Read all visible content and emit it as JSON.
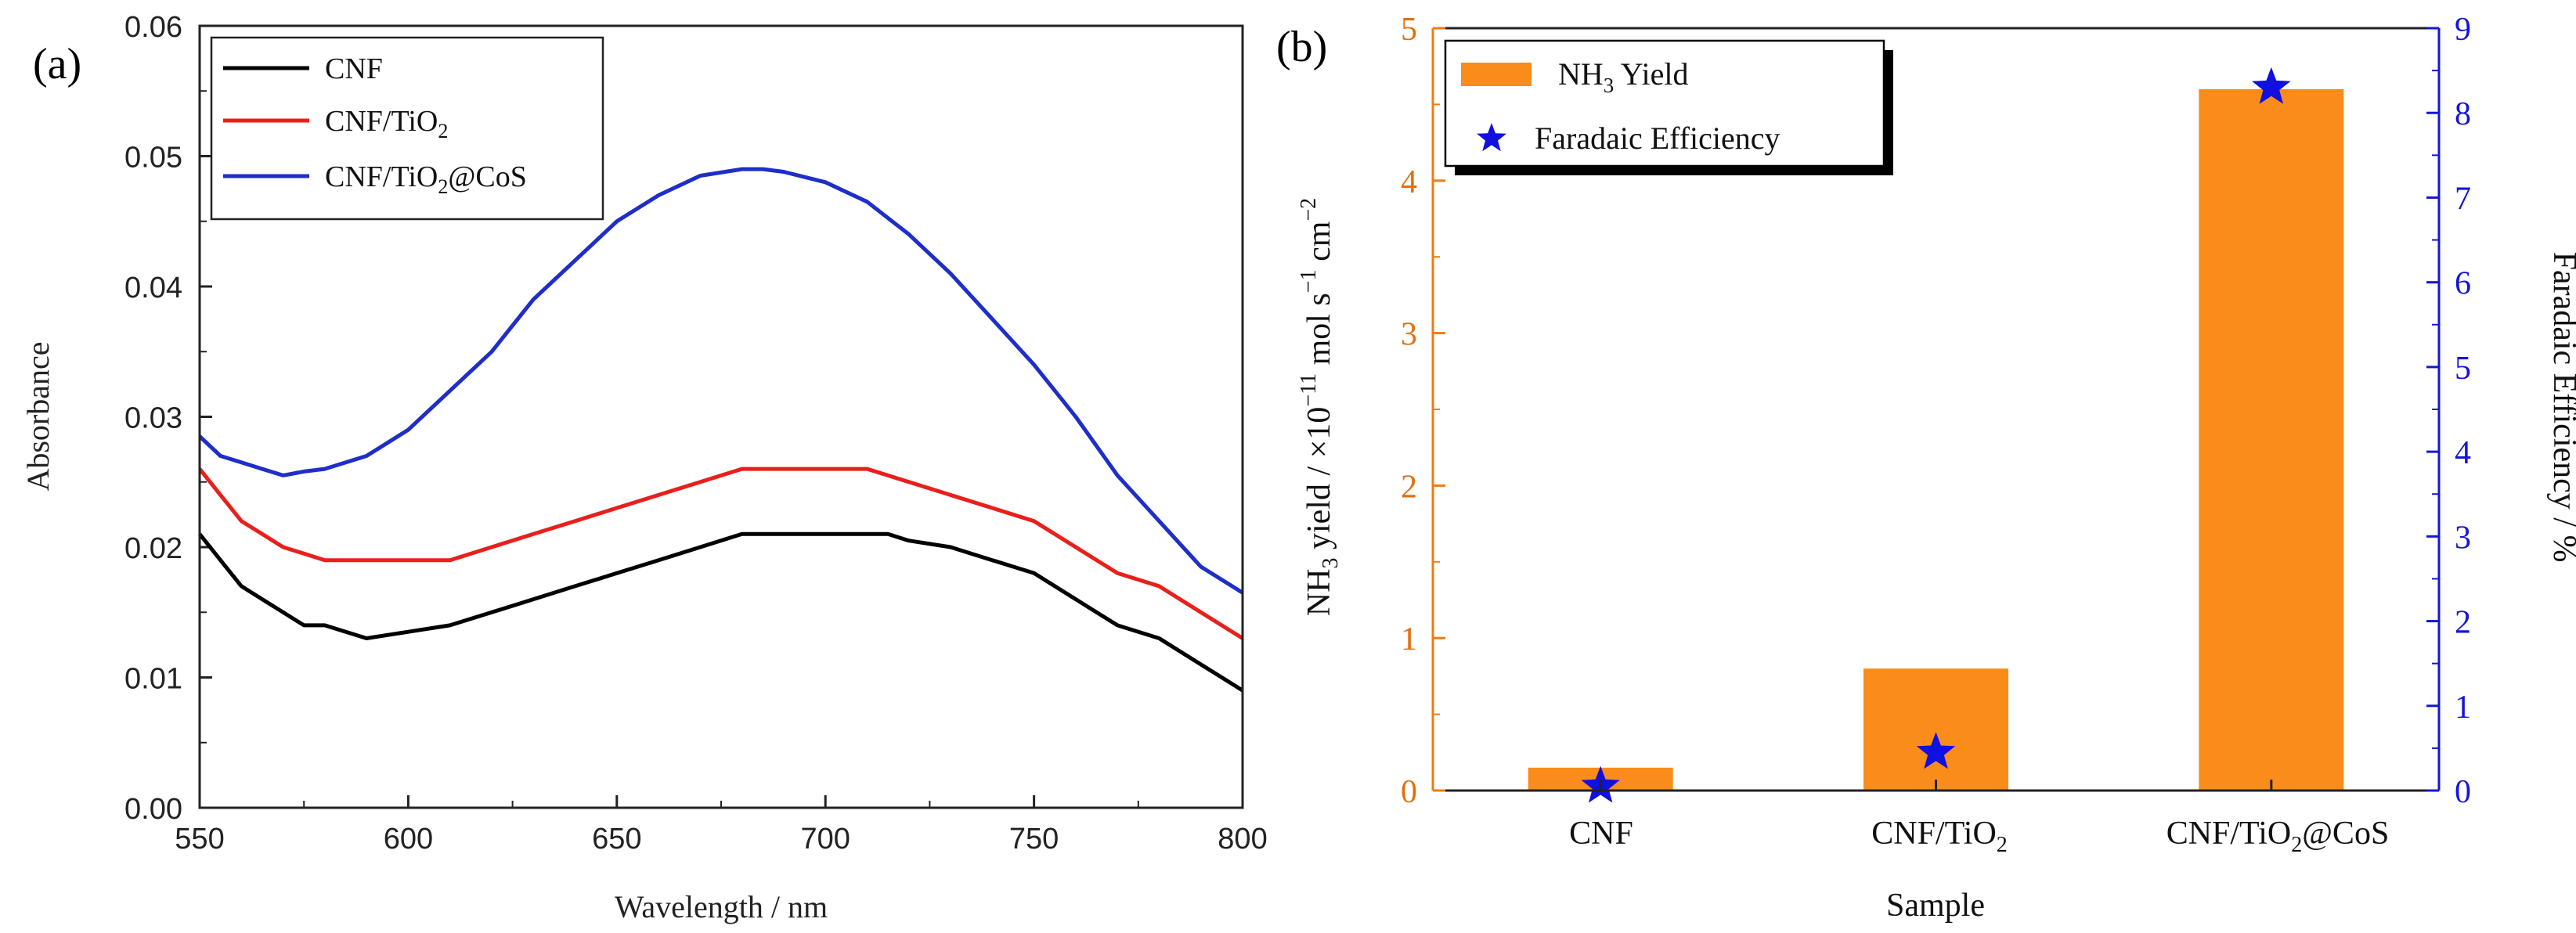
{
  "chart_data": [
    {
      "panel_label": "(a)",
      "type": "line",
      "xlabel": "Wavelength / nm",
      "ylabel": "Absorbance",
      "xlim": [
        550,
        800
      ],
      "ylim": [
        0,
        0.06
      ],
      "xticks": [
        "550",
        "600",
        "650",
        "700",
        "750",
        "800"
      ],
      "yticks": [
        "0.00",
        "0.01",
        "0.02",
        "0.03",
        "0.04",
        "0.05",
        "0.06"
      ],
      "legend_position": "top-left",
      "series": [
        {
          "name": "CNF",
          "color": "#000000",
          "x": [
            550,
            555,
            560,
            565,
            570,
            575,
            580,
            590,
            600,
            610,
            620,
            630,
            640,
            650,
            660,
            670,
            680,
            690,
            700,
            710,
            715,
            720,
            730,
            740,
            750,
            760,
            770,
            780,
            790,
            795,
            800
          ],
          "y": [
            0.021,
            0.019,
            0.017,
            0.016,
            0.015,
            0.014,
            0.014,
            0.013,
            0.0135,
            0.014,
            0.015,
            0.016,
            0.017,
            0.018,
            0.019,
            0.02,
            0.021,
            0.021,
            0.021,
            0.021,
            0.021,
            0.0205,
            0.02,
            0.019,
            0.018,
            0.016,
            0.014,
            0.013,
            0.011,
            0.01,
            0.009
          ]
        },
        {
          "name": "CNF/TiO2",
          "color": "#e8201c",
          "x": [
            550,
            555,
            560,
            565,
            570,
            575,
            580,
            590,
            600,
            610,
            620,
            630,
            640,
            650,
            660,
            670,
            680,
            690,
            700,
            710,
            715,
            720,
            730,
            740,
            750,
            760,
            770,
            780,
            790,
            800
          ],
          "y": [
            0.026,
            0.024,
            0.022,
            0.021,
            0.02,
            0.0195,
            0.019,
            0.019,
            0.019,
            0.019,
            0.02,
            0.021,
            0.022,
            0.023,
            0.024,
            0.025,
            0.026,
            0.026,
            0.026,
            0.026,
            0.0255,
            0.025,
            0.024,
            0.023,
            0.022,
            0.02,
            0.018,
            0.017,
            0.015,
            0.013
          ]
        },
        {
          "name": "CNF/TiO2@CoS",
          "color": "#1f2ec9",
          "x": [
            550,
            555,
            560,
            565,
            570,
            575,
            580,
            590,
            600,
            610,
            620,
            630,
            640,
            650,
            660,
            670,
            680,
            685,
            690,
            700,
            710,
            720,
            730,
            740,
            750,
            760,
            770,
            780,
            790,
            800
          ],
          "y": [
            0.0285,
            0.027,
            0.0265,
            0.026,
            0.0255,
            0.0258,
            0.026,
            0.027,
            0.029,
            0.032,
            0.035,
            0.039,
            0.042,
            0.045,
            0.047,
            0.0485,
            0.049,
            0.049,
            0.0488,
            0.048,
            0.0465,
            0.044,
            0.041,
            0.0375,
            0.034,
            0.03,
            0.0255,
            0.022,
            0.0185,
            0.0165
          ]
        }
      ]
    },
    {
      "panel_label": "(b)",
      "type": "bar",
      "xlabel": "Sample",
      "ylabel": "NH3 yield / ×10⁻¹¹ mol s⁻¹ cm⁻²",
      "y2label": "Faradaic Efficiency / %",
      "categories": [
        "CNF",
        "CNF/TiO2",
        "CNF/TiO2@CoS"
      ],
      "ylim": [
        0,
        5
      ],
      "y2lim": [
        0,
        9
      ],
      "yticks": [
        "0",
        "1",
        "2",
        "3",
        "4",
        "5"
      ],
      "y2ticks": [
        "0",
        "1",
        "2",
        "3",
        "4",
        "5",
        "6",
        "7",
        "8",
        "9"
      ],
      "legend_position": "top-left",
      "series": [
        {
          "name": "NH3 Yield",
          "axis": "left",
          "type": "bar",
          "color": "#f98c1a",
          "values": [
            0.15,
            0.8,
            4.6
          ]
        },
        {
          "name": "Faradaic Efficiency",
          "axis": "right",
          "type": "scatter",
          "marker": "star",
          "color": "#1010e0",
          "values": [
            0.05,
            0.45,
            8.3
          ]
        }
      ]
    }
  ]
}
